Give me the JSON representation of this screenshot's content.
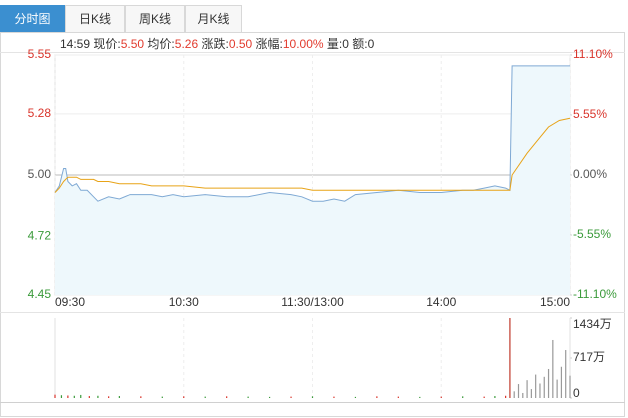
{
  "header": {
    "tabs": [
      "分时图",
      "日K线",
      "周K线",
      "月K线"
    ],
    "active_tab": 0,
    "quote": {
      "time": "14:59",
      "fields": [
        {
          "label": "现价:",
          "value": "5.50"
        },
        {
          "label": "均价:",
          "value": "5.26"
        },
        {
          "label": "涨跌:",
          "value": "0.50"
        },
        {
          "label": "涨幅:",
          "value": "10.00%"
        },
        {
          "label": "量:",
          "value": "0"
        },
        {
          "label": "额:",
          "value": "0"
        }
      ]
    }
  },
  "chart_data": [
    {
      "type": "line",
      "x": [
        0,
        2,
        4,
        5,
        6,
        8,
        10,
        12,
        15,
        18,
        20,
        25,
        30,
        35,
        40,
        45,
        50,
        55,
        60,
        70,
        80,
        90,
        100,
        110,
        115,
        120,
        125,
        130,
        135,
        140,
        150,
        160,
        170,
        180,
        190,
        195,
        200,
        205,
        210,
        212,
        213,
        220,
        225,
        230,
        235,
        240
      ],
      "series": [
        {
          "name": "现价",
          "color": "#7fa9d4",
          "fill": "#eef8fc",
          "values": [
            4.92,
            4.95,
            5.03,
            5.03,
            4.97,
            4.95,
            4.96,
            4.93,
            4.93,
            4.9,
            4.88,
            4.9,
            4.89,
            4.91,
            4.91,
            4.91,
            4.9,
            4.91,
            4.9,
            4.91,
            4.9,
            4.9,
            4.92,
            4.91,
            4.9,
            4.88,
            4.88,
            4.89,
            4.88,
            4.91,
            4.92,
            4.93,
            4.92,
            4.92,
            4.93,
            4.93,
            4.94,
            4.95,
            4.94,
            4.93,
            5.5,
            5.5,
            5.5,
            5.5,
            5.5,
            5.5
          ]
        },
        {
          "name": "均价",
          "color": "#e8a317",
          "values": [
            4.92,
            4.94,
            4.97,
            4.98,
            4.99,
            4.99,
            4.99,
            4.98,
            4.98,
            4.98,
            4.97,
            4.97,
            4.96,
            4.96,
            4.96,
            4.95,
            4.95,
            4.95,
            4.95,
            4.94,
            4.94,
            4.94,
            4.94,
            4.94,
            4.94,
            4.93,
            4.93,
            4.93,
            4.93,
            4.93,
            4.93,
            4.93,
            4.93,
            4.93,
            4.93,
            4.93,
            4.93,
            4.93,
            4.93,
            4.93,
            5.0,
            5.1,
            5.16,
            5.22,
            5.25,
            5.26
          ]
        }
      ],
      "xlim": [
        0,
        240
      ],
      "xticks": [
        {
          "value": 0,
          "label": "09:30"
        },
        {
          "value": 60,
          "label": "10:30"
        },
        {
          "value": 120,
          "label": "11:30/13:00"
        },
        {
          "value": 180,
          "label": "14:00"
        },
        {
          "value": 240,
          "label": "15:00"
        }
      ],
      "ylim": [
        4.45,
        5.55
      ],
      "yticks": [
        5.55,
        5.28,
        {
          "value": 5,
          "label": "5.00"
        },
        4.72,
        4.45
      ],
      "y2lim": [
        -11.1,
        11.1
      ],
      "y2ticks": [
        {
          "value": 11.1,
          "label": "11.10%"
        },
        {
          "value": 5.55,
          "label": "5.55%"
        },
        {
          "value": 0,
          "label": "0.00%"
        },
        {
          "value": -5.55,
          "label": "-5.55%"
        },
        {
          "value": -11.1,
          "label": "-11.10%"
        }
      ],
      "grid": true
    },
    {
      "type": "bar",
      "x": [
        0,
        3,
        6,
        9,
        12,
        16,
        20,
        25,
        30,
        40,
        50,
        60,
        70,
        80,
        90,
        100,
        110,
        120,
        130,
        140,
        150,
        160,
        170,
        180,
        190,
        200,
        205,
        210,
        212,
        214,
        216,
        218,
        220,
        222,
        224,
        226,
        228,
        230,
        232,
        234,
        236,
        238,
        240
      ],
      "values": [
        60,
        50,
        45,
        40,
        55,
        35,
        40,
        30,
        35,
        30,
        25,
        30,
        25,
        30,
        25,
        20,
        25,
        30,
        25,
        20,
        30,
        25,
        20,
        25,
        30,
        25,
        35,
        40,
        1434,
        120,
        250,
        90,
        320,
        160,
        420,
        260,
        380,
        520,
        1040,
        330,
        560,
        860,
        400
      ],
      "colors": [
        "#d9342b",
        "#3a9a3a",
        "#d9342b",
        "#3a9a3a",
        "#3a9a3a",
        "#d9342b",
        "#3a9a3a",
        "#d9342b",
        "#3a9a3a",
        "#d9342b",
        "#3a9a3a",
        "#d9342b",
        "#3a9a3a",
        "#d9342b",
        "#3a9a3a",
        "#3a9a3a",
        "#d9342b",
        "#3a9a3a",
        "#d9342b",
        "#3a9a3a",
        "#d9342b",
        "#d9342b",
        "#3a9a3a",
        "#d9342b",
        "#3a9a3a",
        "#d9342b",
        "#3a9a3a",
        "#d9342b",
        "#c0392b",
        "#999999",
        "#999999",
        "#999999",
        "#999999",
        "#999999",
        "#999999",
        "#999999",
        "#999999",
        "#999999",
        "#999999",
        "#999999",
        "#999999",
        "#999999",
        "#999999"
      ],
      "xlim": [
        0,
        240
      ],
      "ylim": [
        0,
        1434
      ],
      "yticks": [
        {
          "value": 1434,
          "label": "1434万"
        },
        {
          "value": 717,
          "label": "717万"
        },
        0
      ]
    }
  ]
}
